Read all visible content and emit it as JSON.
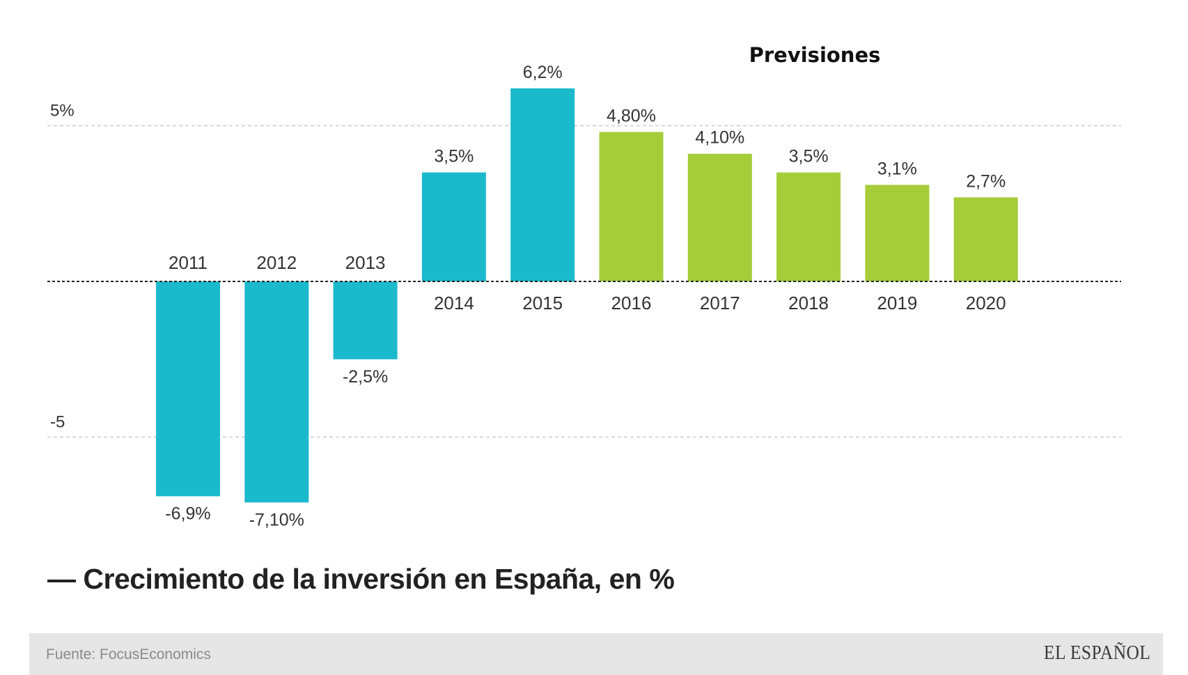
{
  "chart_data": {
    "type": "bar",
    "title": "Crecimiento de la inversión en España, en %",
    "caption": "— Crecimiento de la inversión en España, en %",
    "forecast_label": "Previsiones",
    "categories": [
      "2011",
      "2012",
      "2013",
      "2014",
      "2015",
      "2016",
      "2017",
      "2018",
      "2019",
      "2020"
    ],
    "values": [
      -6.9,
      -7.1,
      -2.5,
      3.5,
      6.2,
      4.8,
      4.1,
      3.5,
      3.1,
      2.7
    ],
    "value_labels": [
      "-6,9%",
      "-7,10%",
      "-2,5%",
      "3,5%",
      "6,2%",
      "4,80%",
      "4,10%",
      "3,5%",
      "3,1%",
      "2,7%"
    ],
    "forecast": [
      false,
      false,
      false,
      false,
      false,
      true,
      true,
      true,
      true,
      true
    ],
    "ylim": [
      -8,
      7.5
    ],
    "yticks": [
      {
        "value": 5,
        "label": "5%"
      },
      {
        "value": -5,
        "label": "-5"
      }
    ],
    "xlabel": "",
    "ylabel": "",
    "grid": true,
    "colors": {
      "actual": "#1bb9cc",
      "forecast": "#a5cd3a",
      "grid": "#cccccc",
      "zero_line": "#222222"
    }
  },
  "footer": {
    "source": "Fuente: FocusEconomics",
    "brand": "EL ESPAÑOL"
  }
}
